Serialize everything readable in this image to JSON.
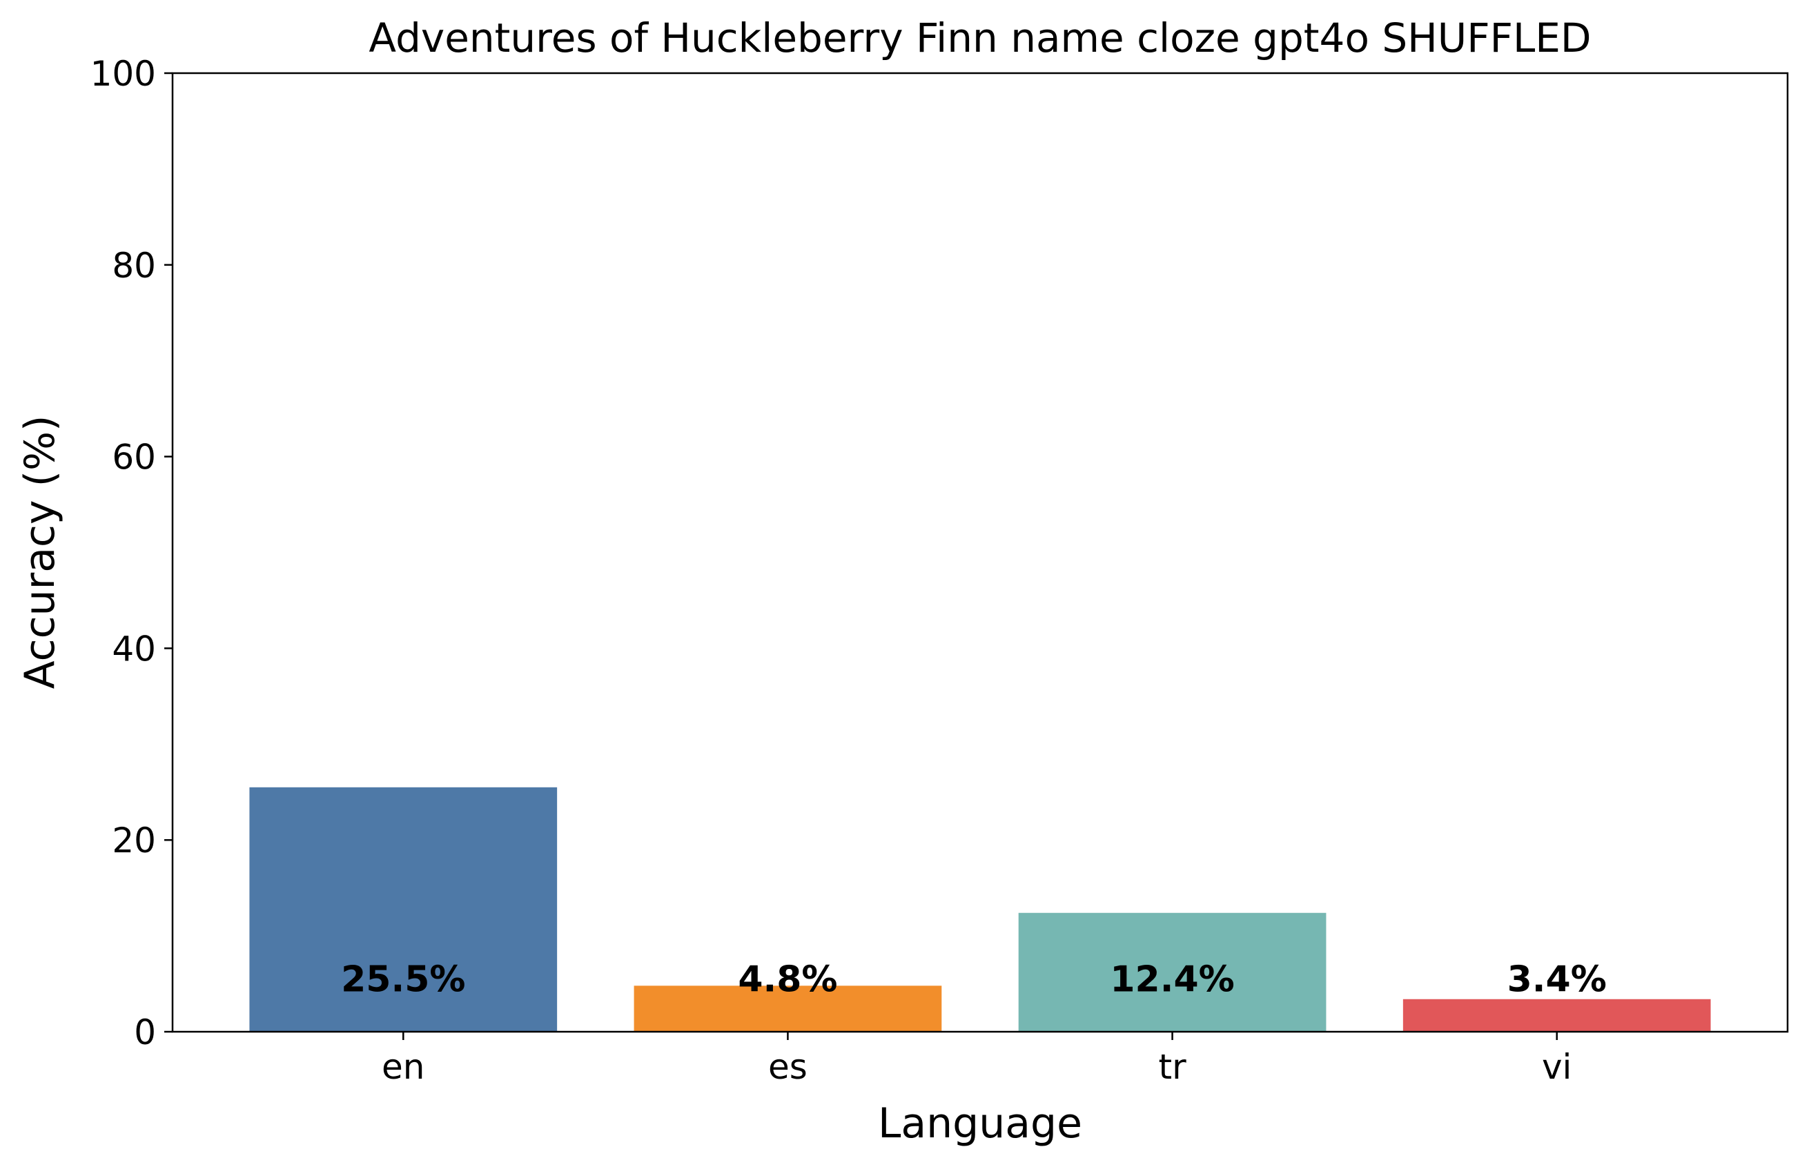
{
  "chart_data": {
    "type": "bar",
    "title": "Adventures of Huckleberry Finn name cloze gpt4o SHUFFLED",
    "xlabel": "Language",
    "ylabel": "Accuracy (%)",
    "categories": [
      "en",
      "es",
      "tr",
      "vi"
    ],
    "values": [
      25.5,
      4.8,
      12.4,
      3.4
    ],
    "value_labels": [
      "25.5%",
      "4.8%",
      "12.4%",
      "3.4%"
    ],
    "colors": [
      "#4e79a7",
      "#f28e2b",
      "#76b7b2",
      "#e15759"
    ],
    "ylim": [
      0,
      100
    ],
    "yticks": [
      0,
      20,
      40,
      60,
      80,
      100
    ],
    "grid": false,
    "legend": "none"
  }
}
